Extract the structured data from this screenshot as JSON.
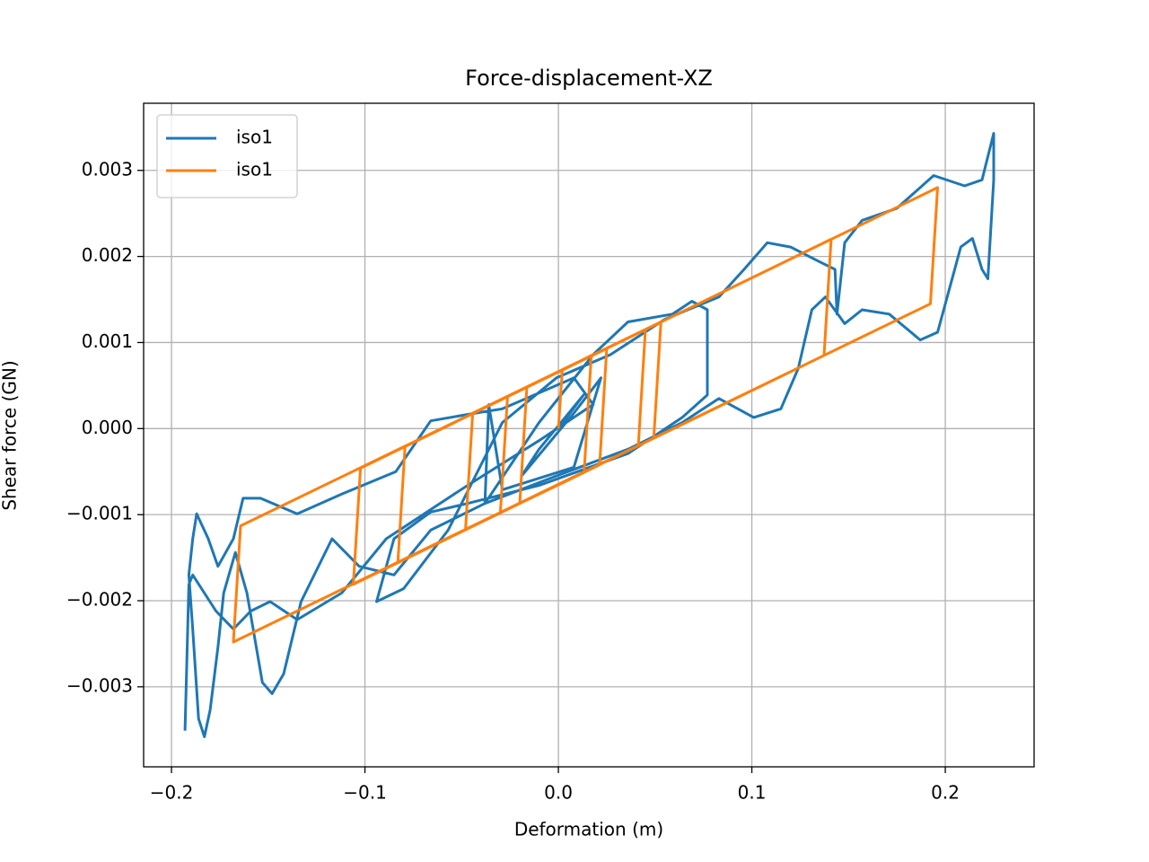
{
  "chart_data": {
    "type": "line",
    "title": "Force-displacement-XZ",
    "x_label": "Deformation (m)",
    "y_label": "Shear force (GN)",
    "xlim": [
      -0.2144,
      0.2459
    ],
    "ylim": [
      -0.00393,
      0.00378
    ],
    "xticks": [
      {
        "value": -0.2,
        "label": "−0.2"
      },
      {
        "value": -0.1,
        "label": "−0.1"
      },
      {
        "value": 0,
        "label": "0.0"
      },
      0.1,
      0.2
    ],
    "yticks": [
      {
        "value": -0.003,
        "label": "−0.003"
      },
      {
        "value": -0.002,
        "label": "−0.002"
      },
      {
        "value": -0.001,
        "label": "−0.001"
      },
      {
        "value": 0,
        "label": "0.000"
      },
      0.001,
      0.002,
      0.003
    ],
    "grid": true,
    "legend": "upper left",
    "series": [
      {
        "name": "iso1",
        "color": "#1f77b4",
        "x": [
          0.0,
          0.013,
          -0.01,
          -0.019,
          0.008,
          0.022,
          0.008,
          -0.029,
          -0.036,
          -0.038,
          -0.01,
          0.018,
          0.036,
          0.059,
          0.069,
          0.077,
          0.077,
          0.064,
          0.036,
          -0.01,
          -0.047,
          -0.066,
          -0.085,
          -0.094,
          -0.08,
          -0.057,
          -0.029,
          -0.001,
          0.027,
          0.055,
          0.083,
          0.096,
          0.108,
          0.12,
          0.134,
          0.143,
          0.144,
          0.148,
          0.157,
          0.175,
          0.194,
          0.21,
          0.219,
          0.225,
          0.225,
          0.222,
          0.219,
          0.214,
          0.208,
          0.201,
          0.196,
          0.187,
          0.171,
          0.157,
          0.148,
          0.138,
          0.131,
          0.124,
          0.115,
          0.101,
          0.083,
          0.064,
          0.036,
          -0.001,
          -0.038,
          -0.066,
          -0.085,
          -0.103,
          -0.117,
          -0.133,
          -0.142,
          -0.148,
          -0.153,
          -0.161,
          -0.167,
          -0.173,
          -0.176,
          -0.18,
          -0.183,
          -0.186,
          -0.189,
          -0.191,
          -0.189,
          -0.187,
          -0.181,
          -0.176,
          -0.168,
          -0.163,
          -0.154,
          -0.135,
          -0.112,
          -0.084,
          -0.066,
          -0.043,
          -0.029,
          0.008,
          0.018,
          -0.01,
          -0.047,
          -0.089,
          -0.112,
          -0.135,
          -0.149,
          -0.159,
          -0.168,
          -0.177,
          -0.189,
          -0.191,
          -0.193
        ],
        "values": [
          0,
          0.00039,
          -0.00024,
          -0.00055,
          0.00018,
          0.00059,
          -0.00045,
          -0.00071,
          0.00028,
          -0.00087,
          7e-05,
          0.00086,
          0.00124,
          0.00133,
          0.00148,
          0.00138,
          0.00039,
          0.00013,
          -0.00029,
          -0.00066,
          -0.00087,
          -0.00097,
          -0.00128,
          -0.00201,
          -0.00186,
          -0.00118,
          7e-05,
          0.00059,
          0.00086,
          0.00127,
          0.00153,
          0.00185,
          0.00216,
          0.00211,
          0.00195,
          0.00185,
          0.00133,
          0.00216,
          0.00242,
          0.00256,
          0.00294,
          0.00282,
          0.00289,
          0.00343,
          0.00289,
          0.00174,
          0.00185,
          0.00221,
          0.00211,
          0.00153,
          0.00112,
          0.00103,
          0.00133,
          0.00138,
          0.00122,
          0.00153,
          0.00138,
          0.0007,
          0.00023,
          0.00013,
          0.00035,
          7e-05,
          -0.00024,
          -0.00055,
          -0.00087,
          -0.00118,
          -0.0017,
          -0.0016,
          -0.00128,
          -0.00201,
          -0.00285,
          -0.00308,
          -0.00295,
          -0.00191,
          -0.00144,
          -0.00191,
          -0.00254,
          -0.00327,
          -0.00358,
          -0.00337,
          -0.00233,
          -0.0017,
          -0.00128,
          -0.00099,
          -0.00128,
          -0.0016,
          -0.00128,
          -0.00081,
          -0.00081,
          -0.00099,
          -0.00076,
          -0.0005,
          9e-05,
          0.00018,
          0.00023,
          0.00059,
          0.00028,
          -0.00014,
          -0.00066,
          -0.00128,
          -0.00191,
          -0.00222,
          -0.00201,
          -0.00212,
          -0.00233,
          -0.00212,
          -0.0017,
          -0.00181,
          -0.00351
        ]
      },
      {
        "name": "iso1",
        "color": "#ff7f0e",
        "x": [
          0,
          0.002,
          0.017,
          0.0133,
          -0.02,
          -0.0163,
          0.025,
          0.0213,
          -0.03,
          -0.0263,
          0.045,
          0.0413,
          -0.048,
          -0.0443,
          0.053,
          0.0493,
          -0.083,
          -0.0793,
          0.141,
          0.1373,
          -0.106,
          -0.1023,
          0.196,
          0.1923,
          -0.168,
          -0.1643,
          0
        ],
        "values": [
          0,
          0.00068,
          0.00085,
          -0.00051,
          -0.00087,
          0.00048,
          0.00093,
          -0.00042,
          -0.00098,
          0.00037,
          0.00115,
          -0.0002,
          -0.00117,
          0.00018,
          0.00124,
          -0.00011,
          -0.00156,
          -0.00021,
          0.0022,
          0.00085,
          -0.00181,
          -0.00046,
          0.0028,
          0.00145,
          -0.00248,
          -0.00113,
          0.00066
        ]
      }
    ]
  }
}
